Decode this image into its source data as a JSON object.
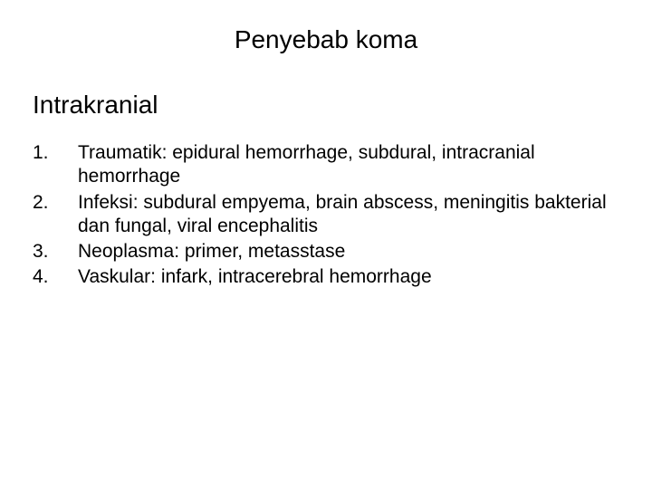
{
  "title": "Penyebab koma",
  "subheading": "Intrakranial",
  "items": [
    {
      "num": "1.",
      "text": "Traumatik: epidural hemorrhage, subdural, intracranial hemorrhage"
    },
    {
      "num": "2.",
      "text": "Infeksi: subdural empyema, brain abscess, meningitis bakterial dan fungal, viral encephalitis"
    },
    {
      "num": "3.",
      "text": "Neoplasma: primer, metasstase"
    },
    {
      "num": "4.",
      "text": "Vaskular: infark, intracerebral hemorrhage"
    }
  ],
  "colors": {
    "background": "#ffffff",
    "text": "#000000"
  },
  "typography": {
    "title_fontsize": 28,
    "subheading_fontsize": 28,
    "body_fontsize": 21,
    "font_family": "Arial"
  }
}
